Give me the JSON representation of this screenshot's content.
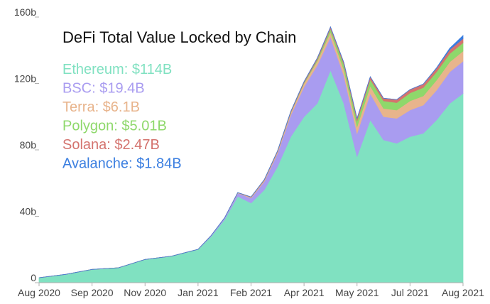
{
  "chart_data": {
    "type": "area",
    "stacked": true,
    "title": "DeFi Total Value Locked by Chain",
    "xlabel": "",
    "ylabel": "",
    "ylim": [
      0,
      160
    ],
    "y_ticks": [
      {
        "value": 0,
        "label": "0"
      },
      {
        "value": 40,
        "label": "40b"
      },
      {
        "value": 80,
        "label": "80b"
      },
      {
        "value": 120,
        "label": "120b"
      },
      {
        "value": 160,
        "label": "160b"
      }
    ],
    "x_ticks": [
      {
        "month": 0,
        "label": "Aug 2020"
      },
      {
        "month": 1,
        "label": "Sep 2020"
      },
      {
        "month": 2,
        "label": "Nov 2020"
      },
      {
        "month": 3,
        "label": "Jan 2021"
      },
      {
        "month": 4,
        "label": "Feb 2021"
      },
      {
        "month": 5,
        "label": "Apr 2021"
      },
      {
        "month": 6,
        "label": "May 2021"
      },
      {
        "month": 7,
        "label": "Jul 2021"
      },
      {
        "month": 8,
        "label": "Aug 2021"
      }
    ],
    "x": [
      0,
      0.5,
      1,
      1.5,
      2,
      2.5,
      3,
      3.25,
      3.5,
      3.75,
      4,
      4.25,
      4.5,
      4.75,
      5,
      5.25,
      5.5,
      5.75,
      6,
      6.25,
      6.5,
      6.75,
      7,
      7.25,
      7.5,
      7.75,
      8
    ],
    "legend_position": "top-left",
    "series": [
      {
        "name": "Ethereum",
        "label": "Ethereum: $114B",
        "color": "#80e1c1",
        "values": [
          3,
          5,
          8,
          9,
          14,
          16,
          20,
          28,
          38,
          52,
          48,
          56,
          70,
          88,
          100,
          108,
          128,
          108,
          76,
          98,
          86,
          84,
          88,
          90,
          98,
          108,
          114
        ]
      },
      {
        "name": "BSC",
        "label": "BSC: $19.4B",
        "color": "#a99cf0",
        "values": [
          0,
          0,
          0,
          0,
          0,
          0,
          0.1,
          0.5,
          1,
          2,
          3,
          5,
          8,
          13,
          18,
          23,
          20,
          17,
          14,
          16,
          14,
          15,
          16,
          17,
          18,
          19,
          19.4
        ]
      },
      {
        "name": "Terra",
        "label": "Terra: $6.1B",
        "color": "#e8b48c",
        "values": [
          0,
          0,
          0,
          0,
          0,
          0,
          0,
          0,
          0,
          0.2,
          0.5,
          0.8,
          1,
          1.5,
          2,
          2.5,
          3,
          3.5,
          4,
          4.5,
          5,
          5,
          5.5,
          5.5,
          6,
          6,
          6.1
        ]
      },
      {
        "name": "Polygon",
        "label": "Polygon: $5.01B",
        "color": "#8ed86b",
        "values": [
          0,
          0,
          0,
          0,
          0,
          0,
          0,
          0,
          0,
          0,
          0,
          0,
          0,
          0.2,
          0.5,
          1,
          2,
          3,
          3.5,
          4,
          4.5,
          4.5,
          4.8,
          5,
          5,
          5,
          5.01
        ]
      },
      {
        "name": "Solana",
        "label": "Solana: $2.47B",
        "color": "#d4736e",
        "values": [
          0,
          0,
          0,
          0,
          0,
          0,
          0,
          0,
          0,
          0.1,
          0.2,
          0.3,
          0.4,
          0.5,
          0.6,
          0.8,
          1,
          1.2,
          1.4,
          1.5,
          1.6,
          1.8,
          2,
          2.1,
          2.2,
          2.4,
          2.47
        ]
      },
      {
        "name": "Avalanche",
        "label": "Avalanche: $1.84B",
        "color": "#3a7ee0",
        "values": [
          0,
          0,
          0,
          0,
          0,
          0,
          0,
          0,
          0,
          0,
          0,
          0,
          0,
          0,
          0,
          0,
          0,
          0,
          0,
          0,
          0,
          0,
          0,
          0,
          0.2,
          0.8,
          1.84
        ]
      }
    ]
  }
}
